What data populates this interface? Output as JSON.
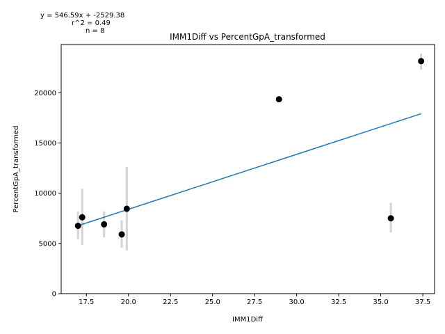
{
  "chart_data": {
    "type": "scatter",
    "title": "IMM1Diff vs PercentGpA_transformed",
    "xlabel": "IMM1Diff",
    "ylabel": "PercentGpA_transformed",
    "xlim": [
      16.0,
      38.2
    ],
    "ylim": [
      0,
      24800
    ],
    "xticks": [
      17.5,
      20.0,
      22.5,
      25.0,
      27.5,
      30.0,
      32.5,
      35.0,
      37.5
    ],
    "xtick_labels": [
      "17.5",
      "20.0",
      "22.5",
      "25.0",
      "27.5",
      "30.0",
      "32.5",
      "35.0",
      "37.5"
    ],
    "yticks": [
      0,
      5000,
      10000,
      15000,
      20000
    ],
    "ytick_labels": [
      "0",
      "5000",
      "10000",
      "15000",
      "20000"
    ],
    "grid": false,
    "points": [
      {
        "x": 17.0,
        "y": 6750,
        "err_low": 5400,
        "err_high": 8200
      },
      {
        "x": 17.25,
        "y": 7600,
        "err_low": 4850,
        "err_high": 10450
      },
      {
        "x": 18.55,
        "y": 6900,
        "err_low": 5600,
        "err_high": 8200
      },
      {
        "x": 19.6,
        "y": 5900,
        "err_low": 4550,
        "err_high": 7300
      },
      {
        "x": 19.9,
        "y": 8450,
        "err_low": 4300,
        "err_high": 12600
      },
      {
        "x": 28.95,
        "y": 19350,
        "err_low": 19350,
        "err_high": 19350
      },
      {
        "x": 35.6,
        "y": 7500,
        "err_low": 6100,
        "err_high": 9050
      },
      {
        "x": 37.4,
        "y": 23150,
        "err_low": 22300,
        "err_high": 23900
      }
    ],
    "fit": {
      "slope": 546.59,
      "intercept": -2529.38,
      "x_range": [
        17.0,
        37.4
      ]
    },
    "annotations": [
      "y = 546.59x + -2529.38",
      "r^2 = 0.49",
      "n = 8"
    ],
    "colors": {
      "points": "#000000",
      "fit_line": "#1f77b4",
      "error_bars": "#d3d3d3"
    }
  }
}
